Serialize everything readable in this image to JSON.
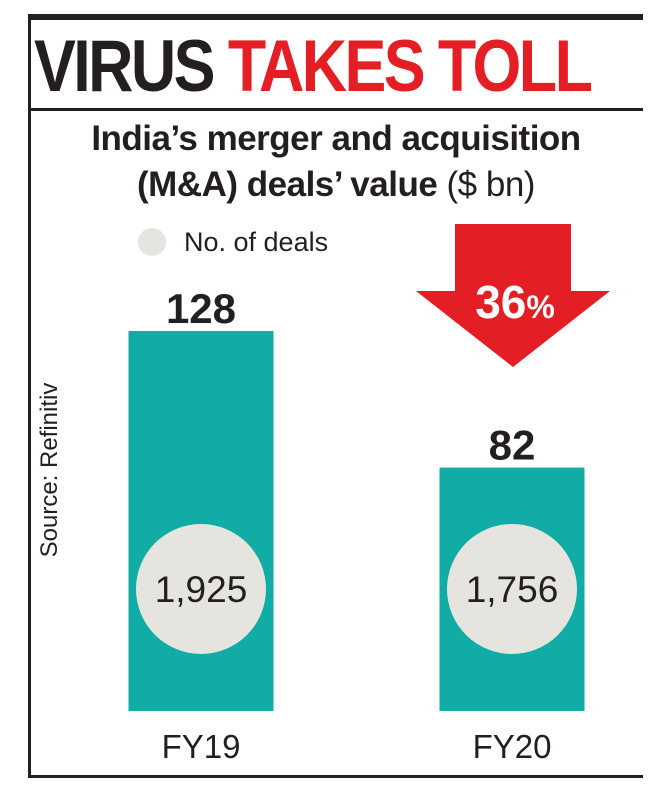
{
  "headline": {
    "part1": "VIRUS",
    "part2": "TAKES TOLL"
  },
  "chart_data": {
    "type": "bar",
    "title_line1": "India’s merger and acquisition",
    "title_line2_bold": "(M&A) deals’ value",
    "unit": "($ bn)",
    "categories": [
      "FY19",
      "FY20"
    ],
    "values": [
      128,
      82
    ],
    "value_labels": [
      "128",
      "82"
    ],
    "deal_counts": [
      "1,925",
      "1,756"
    ],
    "legend": "No. of deals",
    "change": {
      "value": "36",
      "sign": "%",
      "direction": "down"
    },
    "source": "Source: Refinitiv",
    "ylim": [
      0,
      128
    ],
    "colors": {
      "bar": "#12aca6",
      "circle": "#e6e4de",
      "accent": "#e31e24"
    }
  }
}
